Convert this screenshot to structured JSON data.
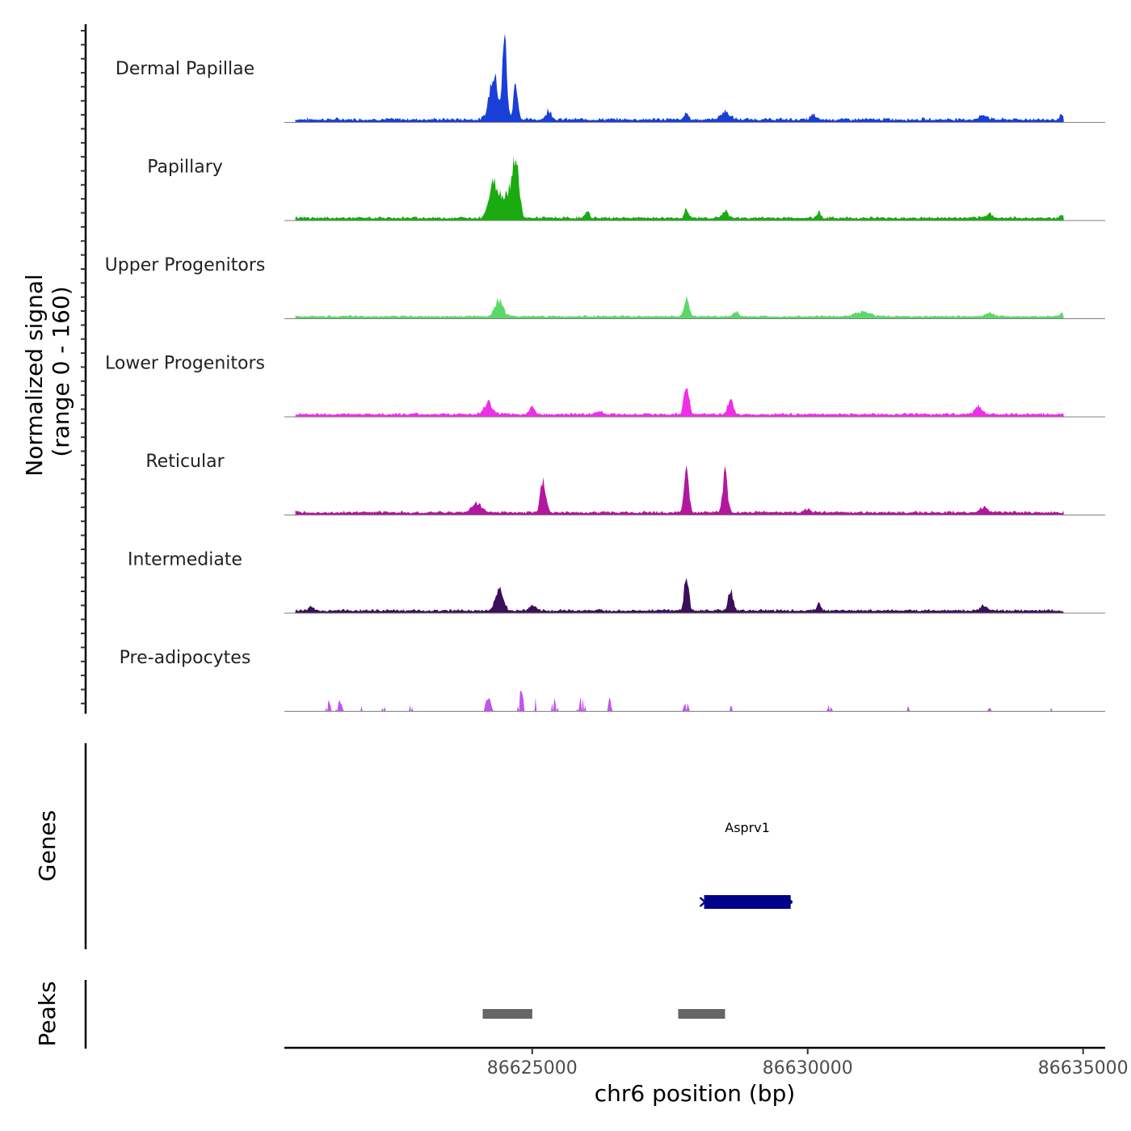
{
  "chart_data": {
    "type": "area",
    "y_axis_title_line1": "Normalized signal",
    "y_axis_title_line2": "(range 0 - 160)",
    "y_range": [
      0,
      160
    ],
    "x_axis_title": "chr6 position (bp)",
    "x_range": [
      86620500,
      86635400
    ],
    "x_ticks": [
      86625000,
      86630000,
      86635000
    ],
    "x_tick_labels": [
      "86625000",
      "86630000",
      "86635000"
    ],
    "tracks": [
      {
        "name": "Dermal Papillae",
        "color": "#1a3fd6",
        "baseline": 3,
        "noise": 4,
        "peaks": [
          [
            86624300,
            70,
            110
          ],
          [
            86624500,
            130,
            55
          ],
          [
            86624700,
            60,
            55
          ],
          [
            86625300,
            15,
            70
          ],
          [
            86627800,
            15,
            40
          ],
          [
            86628500,
            12,
            120
          ],
          [
            86630100,
            8,
            60
          ],
          [
            86633200,
            7,
            100
          ],
          [
            86634600,
            8,
            40
          ]
        ]
      },
      {
        "name": "Papillary",
        "color": "#1aab10",
        "baseline": 3,
        "noise": 3,
        "peaks": [
          [
            86624300,
            55,
            120
          ],
          [
            86624700,
            90,
            80
          ],
          [
            86624550,
            40,
            140
          ],
          [
            86626000,
            12,
            50
          ],
          [
            86627800,
            15,
            45
          ],
          [
            86628500,
            12,
            70
          ],
          [
            86630200,
            10,
            50
          ],
          [
            86633300,
            7,
            80
          ],
          [
            86634600,
            6,
            40
          ]
        ]
      },
      {
        "name": "Upper Progenitors",
        "color": "#5cd86a",
        "baseline": 3,
        "noise": 2,
        "peaks": [
          [
            86624400,
            26,
            100
          ],
          [
            86627800,
            28,
            60
          ],
          [
            86628700,
            7,
            60
          ],
          [
            86631000,
            7,
            200
          ],
          [
            86633300,
            6,
            100
          ],
          [
            86634600,
            6,
            40
          ]
        ]
      },
      {
        "name": "Lower Progenitors",
        "color": "#ee2ee8",
        "baseline": 3,
        "noise": 3,
        "peaks": [
          [
            86624200,
            18,
            110
          ],
          [
            86625000,
            12,
            70
          ],
          [
            86627800,
            50,
            60
          ],
          [
            86628600,
            22,
            70
          ],
          [
            86633100,
            14,
            90
          ],
          [
            86626200,
            5,
            100
          ]
        ]
      },
      {
        "name": "Reticular",
        "color": "#b3179f",
        "baseline": 3,
        "noise": 3,
        "peaks": [
          [
            86624000,
            16,
            120
          ],
          [
            86625200,
            52,
            70
          ],
          [
            86627800,
            66,
            60
          ],
          [
            86628500,
            62,
            60
          ],
          [
            86633200,
            10,
            80
          ],
          [
            86630000,
            5,
            80
          ]
        ]
      },
      {
        "name": "Intermediate",
        "color": "#3b0f5a",
        "baseline": 3,
        "noise": 3,
        "peaks": [
          [
            86624400,
            34,
            100
          ],
          [
            86625000,
            8,
            80
          ],
          [
            86627800,
            60,
            55
          ],
          [
            86628600,
            35,
            60
          ],
          [
            86630200,
            12,
            50
          ],
          [
            86633200,
            8,
            90
          ],
          [
            86621000,
            6,
            60
          ]
        ]
      },
      {
        "name": "Pre-adipocytes",
        "color": "#c154f0",
        "baseline": 0,
        "noise": 0,
        "sparse": true,
        "peaks": [
          [
            86621300,
            20,
            40
          ],
          [
            86621500,
            20,
            50
          ],
          [
            86621900,
            8,
            40
          ],
          [
            86622300,
            10,
            40
          ],
          [
            86622800,
            10,
            60
          ],
          [
            86624200,
            25,
            60
          ],
          [
            86624800,
            40,
            50
          ],
          [
            86625100,
            40,
            50
          ],
          [
            86625400,
            20,
            60
          ],
          [
            86625900,
            25,
            60
          ],
          [
            86626400,
            20,
            40
          ],
          [
            86627800,
            15,
            60
          ],
          [
            86628600,
            10,
            40
          ],
          [
            86630400,
            12,
            40
          ],
          [
            86631800,
            15,
            40
          ],
          [
            86634400,
            8,
            40
          ],
          [
            86633300,
            6,
            60
          ]
        ]
      }
    ],
    "genes": [
      {
        "name": "Asprv1",
        "start": 86628120,
        "end": 86629690,
        "strand": "-",
        "color": "#00008b"
      }
    ],
    "genes_title": "Genes",
    "peaks_title": "Peaks",
    "peak_regions": [
      [
        86624100,
        86625000
      ],
      [
        86627650,
        86628500
      ]
    ],
    "peak_color": "#666666"
  }
}
